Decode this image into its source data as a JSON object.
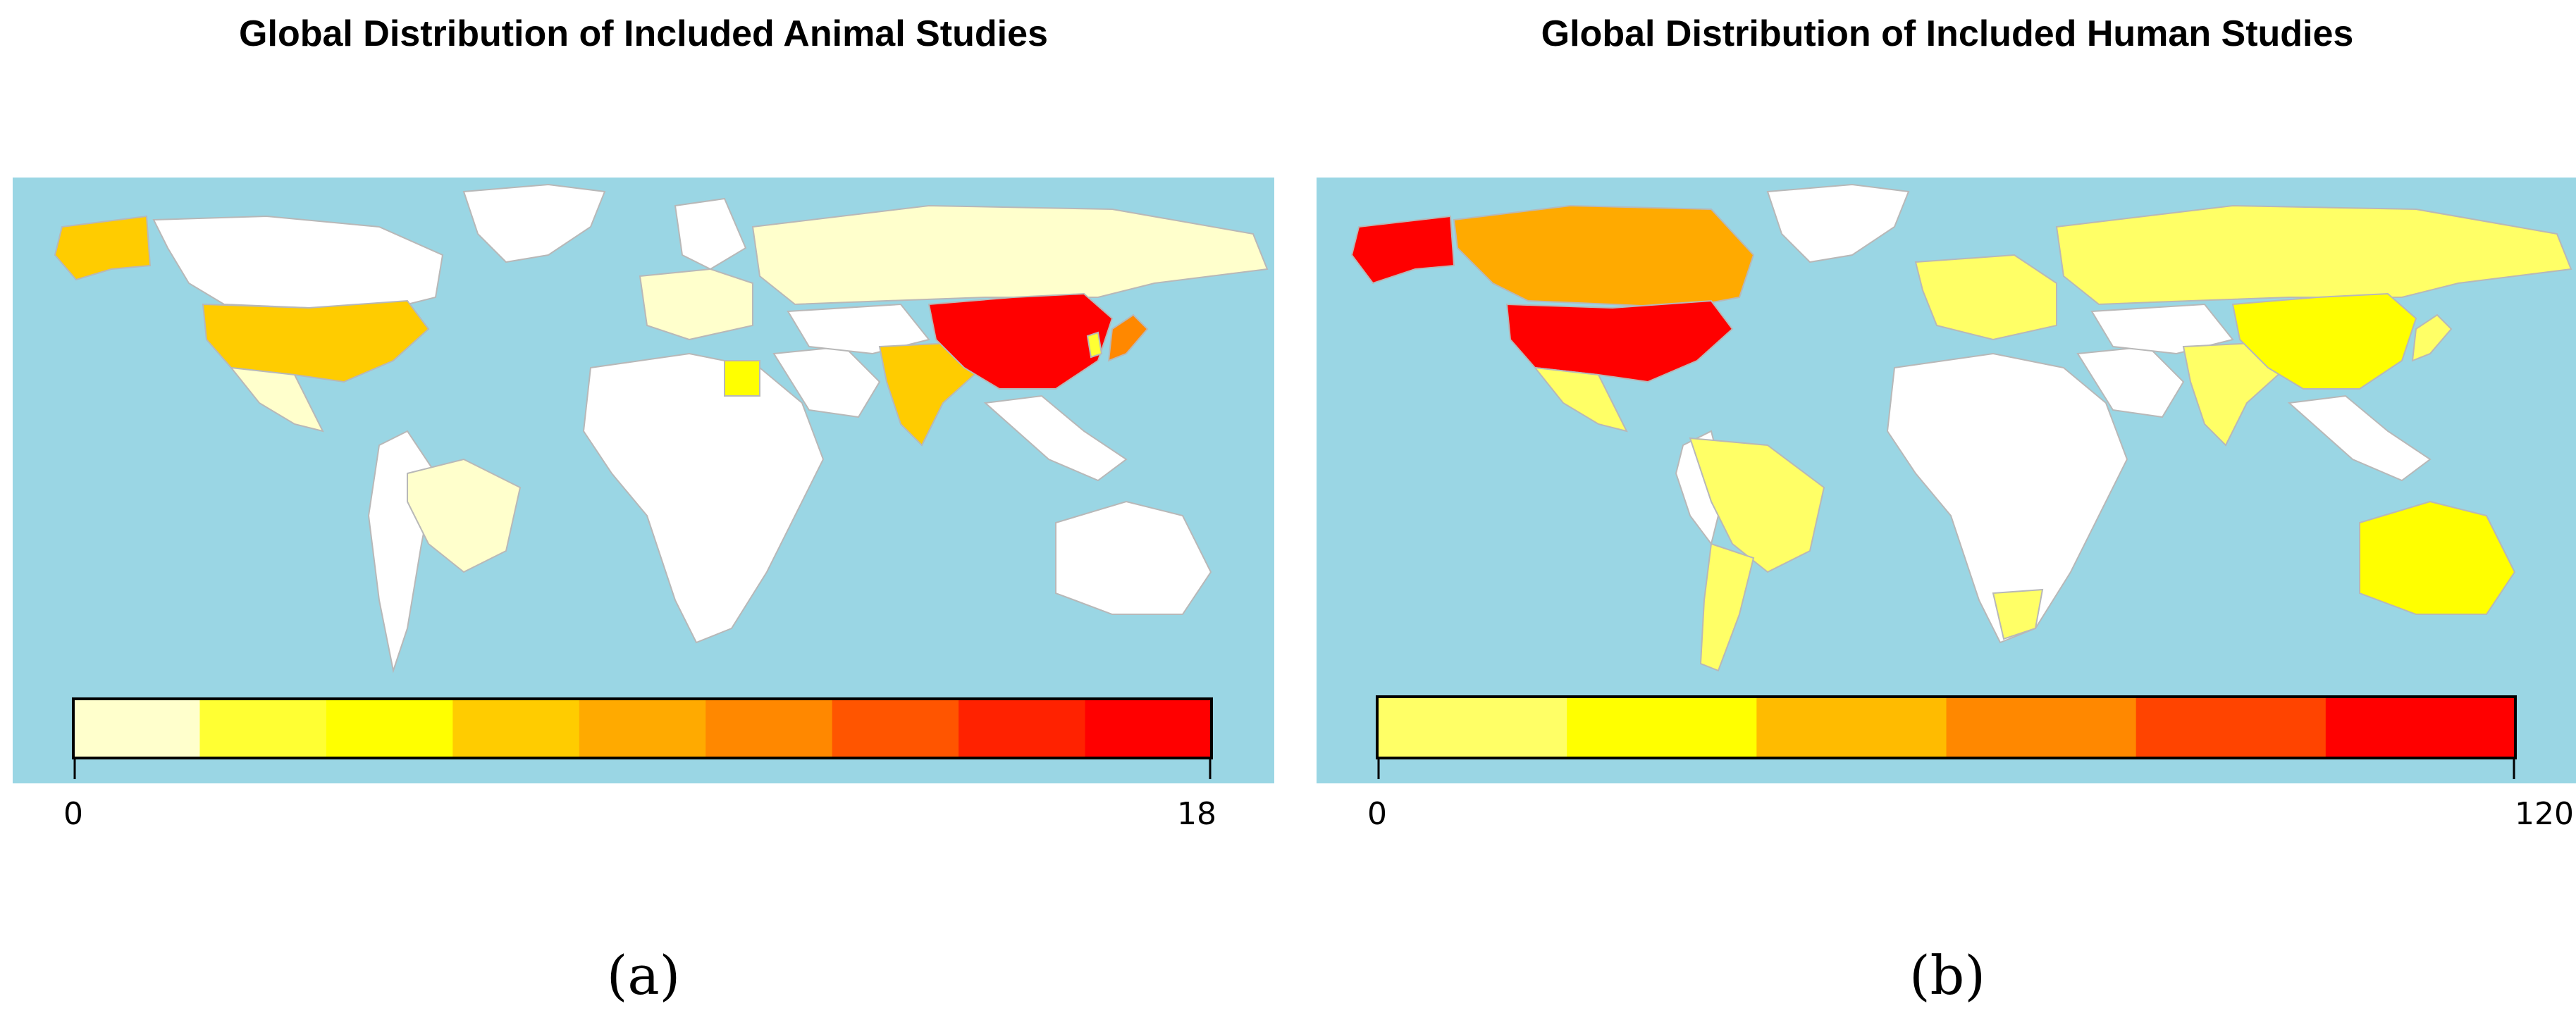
{
  "panels": [
    {
      "title": "Global Distribution of Included Animal Studies",
      "label": "(a)",
      "legend": {
        "min_label": "0",
        "max_label": "18",
        "colors": [
          "#ffffcc",
          "#ffff33",
          "#ffff00",
          "#ffcc00",
          "#ffaa00",
          "#ff8800",
          "#ff5500",
          "#ff2200",
          "#ff0000"
        ]
      },
      "countries": [
        {
          "name": "China",
          "color": "#ff0000"
        },
        {
          "name": "United States",
          "color": "#ffcc00"
        },
        {
          "name": "Alaska (USA)",
          "color": "#ffcc00"
        },
        {
          "name": "Japan",
          "color": "#ff8800"
        },
        {
          "name": "India",
          "color": "#ffcc00"
        },
        {
          "name": "Egypt",
          "color": "#ffff00"
        },
        {
          "name": "Korea",
          "color": "#ffff33"
        },
        {
          "name": "Russia",
          "color": "#ffffcc"
        },
        {
          "name": "Brazil",
          "color": "#ffffcc"
        },
        {
          "name": "Mexico",
          "color": "#ffffcc"
        },
        {
          "name": "Europe",
          "color": "#ffffcc"
        }
      ]
    },
    {
      "title": "Global Distribution of Included Human Studies",
      "label": "(b)",
      "legend": {
        "min_label": "0",
        "max_label": "120",
        "colors": [
          "#ffff66",
          "#ffff00",
          "#ffbb00",
          "#ff8800",
          "#ff4400",
          "#ff0000"
        ]
      },
      "countries": [
        {
          "name": "United States",
          "color": "#ff0000"
        },
        {
          "name": "Alaska (USA)",
          "color": "#ff0000"
        },
        {
          "name": "Canada",
          "color": "#ffaa00"
        },
        {
          "name": "China",
          "color": "#ffff00"
        },
        {
          "name": "Australia",
          "color": "#ffff00"
        },
        {
          "name": "Russia",
          "color": "#ffff66"
        },
        {
          "name": "Brazil",
          "color": "#ffff66"
        },
        {
          "name": "Argentina",
          "color": "#ffff66"
        },
        {
          "name": "India",
          "color": "#ffff66"
        },
        {
          "name": "Mexico",
          "color": "#ffff66"
        },
        {
          "name": "Europe",
          "color": "#ffff66"
        },
        {
          "name": "South Africa",
          "color": "#ffff66"
        },
        {
          "name": "Japan",
          "color": "#ffff66"
        }
      ]
    }
  ]
}
